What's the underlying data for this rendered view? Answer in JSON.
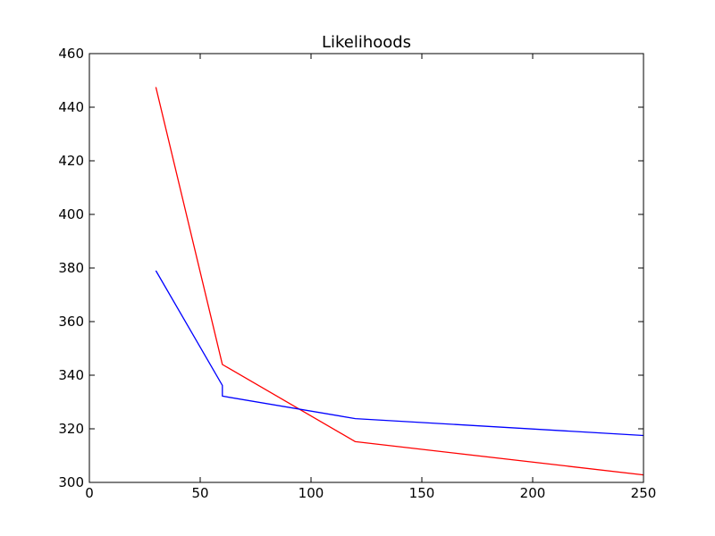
{
  "chart_data": {
    "type": "line",
    "title": "Likelihoods",
    "xlabel": "",
    "ylabel": "",
    "xlim": [
      0,
      250
    ],
    "ylim": [
      300,
      460
    ],
    "xticks": [
      0,
      50,
      100,
      150,
      200,
      250
    ],
    "yticks": [
      300,
      320,
      340,
      360,
      380,
      400,
      420,
      440,
      460
    ],
    "grid": false,
    "series": [
      {
        "color": "#ff0000",
        "points": [
          [
            30,
            447.5
          ],
          [
            60,
            344
          ],
          [
            120,
            315.2
          ],
          [
            250,
            302.8
          ]
        ]
      },
      {
        "color": "#0000ff",
        "points": [
          [
            30,
            379
          ],
          [
            60,
            336.2
          ],
          [
            60,
            332.2
          ],
          [
            120,
            323.8
          ],
          [
            250,
            317.5
          ]
        ]
      }
    ]
  }
}
